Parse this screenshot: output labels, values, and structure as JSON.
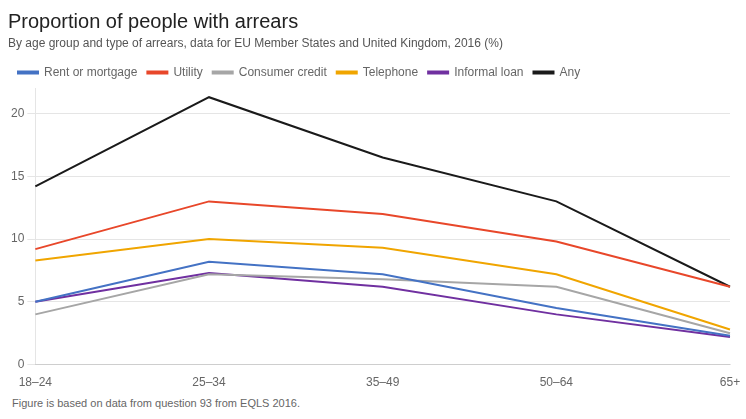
{
  "chart_data": {
    "type": "line",
    "title": "Proportion of people with arrears",
    "subtitle": "By age group and type of arrears, data for EU Member States and United Kingdom, 2016 (%)",
    "footnote": "Figure is based on data from question 93 from EQLS 2016.",
    "categories": [
      "18–24",
      "25–34",
      "35–49",
      "50–64",
      "65+"
    ],
    "series": [
      {
        "name": "Rent or mortgage",
        "color": "#4472C4",
        "values": [
          5.0,
          8.2,
          7.2,
          4.5,
          2.3
        ]
      },
      {
        "name": "Utility",
        "color": "#E8472A",
        "values": [
          9.2,
          13.0,
          12.0,
          9.8,
          6.2
        ]
      },
      {
        "name": "Consumer credit",
        "color": "#A6A6A6",
        "values": [
          4.0,
          7.2,
          6.8,
          6.2,
          2.5
        ]
      },
      {
        "name": "Telephone",
        "color": "#F0A500",
        "values": [
          8.3,
          10.0,
          9.3,
          7.2,
          2.8
        ]
      },
      {
        "name": "Informal loan",
        "color": "#7030A0",
        "values": [
          5.0,
          7.3,
          6.2,
          4.0,
          2.2
        ]
      },
      {
        "name": "Any",
        "color": "#1A1A1A",
        "values": [
          14.2,
          21.3,
          16.5,
          13.0,
          6.2
        ]
      }
    ],
    "ylim": [
      0,
      22
    ],
    "yticks": [
      0,
      5,
      10,
      15,
      20
    ],
    "grid": true,
    "legend": "top",
    "marker": "none"
  }
}
